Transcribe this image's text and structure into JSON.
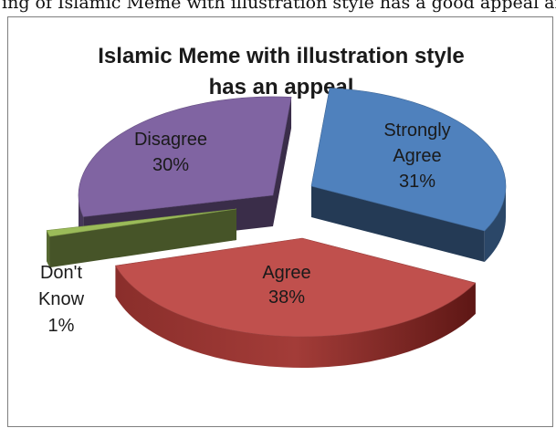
{
  "page": {
    "top_text": "ing of Islamic Meme with illustration style has a good appeal and interesting"
  },
  "chart_data": {
    "type": "pie",
    "title_lines": [
      "Islamic Meme with illustration style",
      "has an appeal"
    ],
    "slices": [
      {
        "label_lines": [
          "Strongly",
          "Agree"
        ],
        "value": 31,
        "value_label": "31%",
        "color": "#4F81BD"
      },
      {
        "label_lines": [
          "Agree"
        ],
        "value": 38,
        "value_label": "38%",
        "color": "#C0504D"
      },
      {
        "label_lines": [
          "Don't",
          "Know"
        ],
        "value": 1,
        "value_label": "1%",
        "color": "#9BBB59"
      },
      {
        "label_lines": [
          "Disagree"
        ],
        "value": 30,
        "value_label": "30%",
        "color": "#8064A2"
      }
    ],
    "style": "3d-exploded"
  }
}
